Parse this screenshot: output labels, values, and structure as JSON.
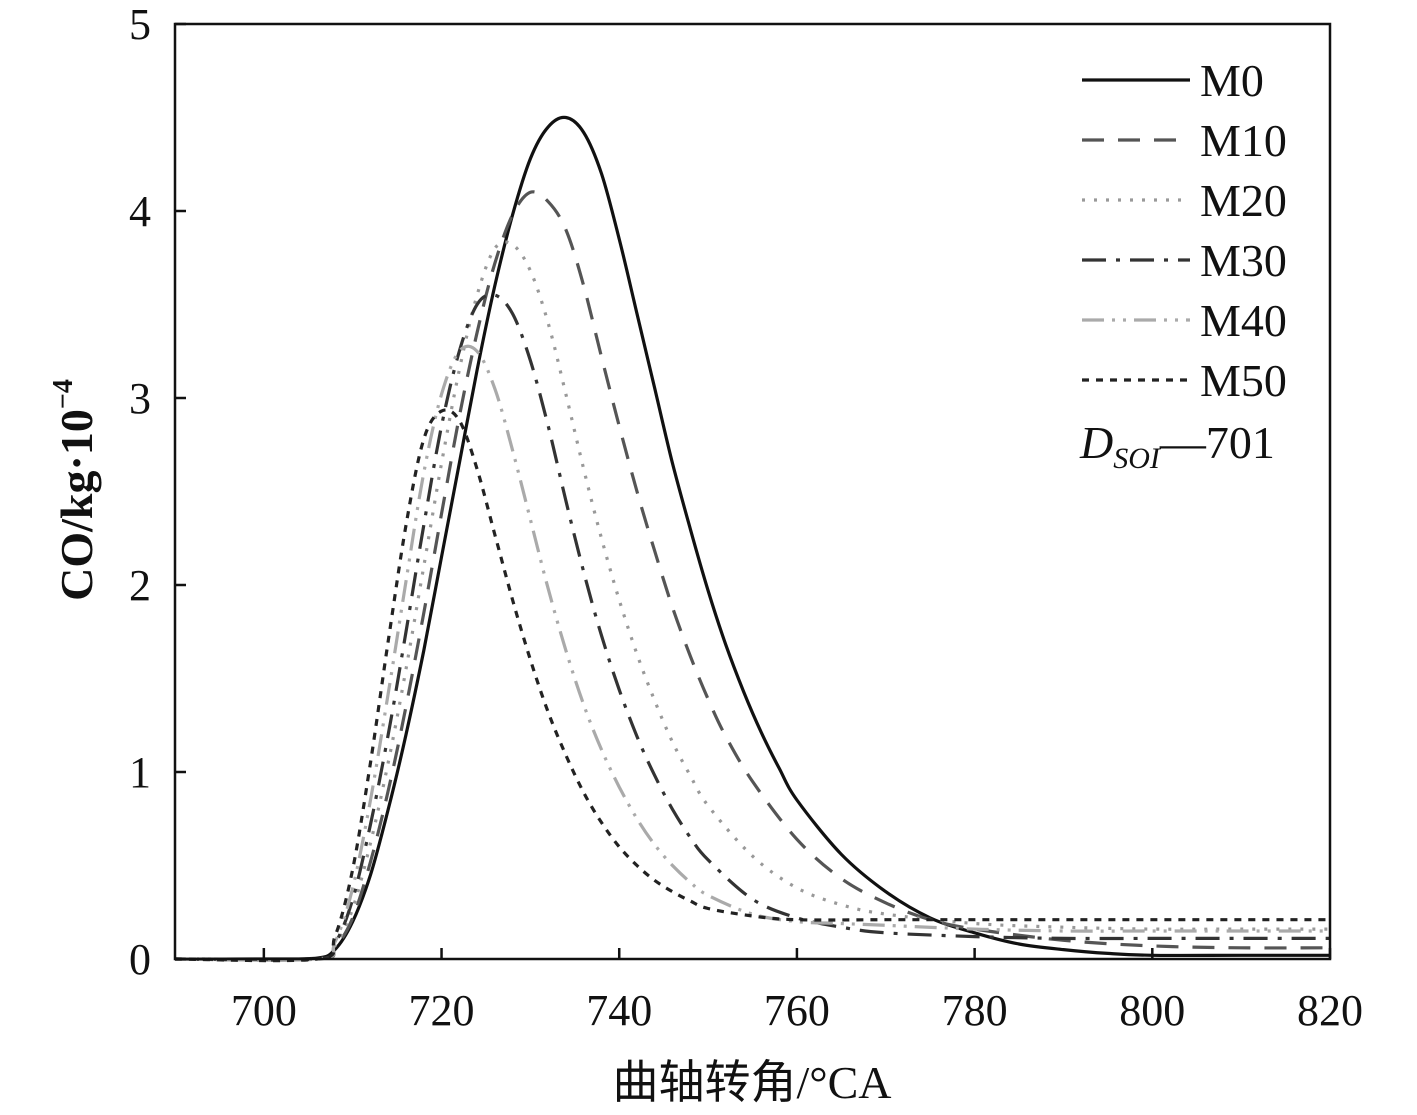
{
  "chart_data": {
    "type": "line",
    "xlabel": "曲轴转角/°CA",
    "ylabel_main": "CO/kg·10",
    "ylabel_exponent": "−4",
    "xlim": [
      690,
      820
    ],
    "ylim": [
      0,
      5
    ],
    "x_ticks": [
      700,
      720,
      740,
      760,
      780,
      800,
      820
    ],
    "x_tick_labels": [
      "700",
      "720",
      "740",
      "760",
      "780",
      "800",
      "820"
    ],
    "y_ticks": [
      0,
      1,
      2,
      3,
      4,
      5
    ],
    "y_tick_labels": [
      "0",
      "1",
      "2",
      "3",
      "4",
      "5"
    ],
    "grid": false,
    "legend_position": "top-right",
    "annotation": {
      "main": "D",
      "subscript": "SOI",
      "suffix": "—701"
    },
    "series": [
      {
        "name": "M0",
        "style": "solid",
        "color": "#111111",
        "points": [
          [
            690,
            0
          ],
          [
            700,
            0
          ],
          [
            706,
            0.005
          ],
          [
            708,
            0.05
          ],
          [
            710,
            0.2
          ],
          [
            712,
            0.45
          ],
          [
            714,
            0.8
          ],
          [
            716,
            1.2
          ],
          [
            718,
            1.65
          ],
          [
            720,
            2.15
          ],
          [
            722,
            2.65
          ],
          [
            724,
            3.15
          ],
          [
            726,
            3.6
          ],
          [
            728,
            3.98
          ],
          [
            730,
            4.28
          ],
          [
            732,
            4.45
          ],
          [
            734,
            4.5
          ],
          [
            736,
            4.42
          ],
          [
            738,
            4.2
          ],
          [
            740,
            3.85
          ],
          [
            742,
            3.45
          ],
          [
            744,
            3.05
          ],
          [
            746,
            2.65
          ],
          [
            748,
            2.3
          ],
          [
            750,
            1.97
          ],
          [
            752,
            1.68
          ],
          [
            754,
            1.43
          ],
          [
            756,
            1.21
          ],
          [
            758,
            1.02
          ],
          [
            760,
            0.85
          ],
          [
            765,
            0.56
          ],
          [
            770,
            0.36
          ],
          [
            775,
            0.22
          ],
          [
            780,
            0.14
          ],
          [
            785,
            0.08
          ],
          [
            790,
            0.05
          ],
          [
            795,
            0.03
          ],
          [
            800,
            0.02
          ],
          [
            810,
            0.02
          ],
          [
            820,
            0.02
          ]
        ]
      },
      {
        "name": "M10",
        "style": "dashed",
        "color": "#555555",
        "points": [
          [
            690,
            0
          ],
          [
            706,
            0
          ],
          [
            708,
            0.06
          ],
          [
            710,
            0.22
          ],
          [
            712,
            0.52
          ],
          [
            714,
            0.9
          ],
          [
            716,
            1.35
          ],
          [
            718,
            1.85
          ],
          [
            720,
            2.38
          ],
          [
            722,
            2.9
          ],
          [
            724,
            3.35
          ],
          [
            726,
            3.72
          ],
          [
            728,
            3.98
          ],
          [
            730,
            4.1
          ],
          [
            732,
            4.05
          ],
          [
            734,
            3.9
          ],
          [
            736,
            3.6
          ],
          [
            738,
            3.22
          ],
          [
            740,
            2.85
          ],
          [
            742,
            2.5
          ],
          [
            744,
            2.18
          ],
          [
            746,
            1.88
          ],
          [
            748,
            1.62
          ],
          [
            750,
            1.39
          ],
          [
            752,
            1.19
          ],
          [
            755,
            0.95
          ],
          [
            760,
            0.64
          ],
          [
            765,
            0.43
          ],
          [
            770,
            0.3
          ],
          [
            775,
            0.21
          ],
          [
            780,
            0.16
          ],
          [
            790,
            0.1
          ],
          [
            800,
            0.07
          ],
          [
            810,
            0.06
          ],
          [
            820,
            0.06
          ]
        ]
      },
      {
        "name": "M20",
        "style": "dotted",
        "color": "#999999",
        "points": [
          [
            690,
            0
          ],
          [
            706,
            0
          ],
          [
            708,
            0.07
          ],
          [
            710,
            0.27
          ],
          [
            712,
            0.62
          ],
          [
            714,
            1.05
          ],
          [
            716,
            1.55
          ],
          [
            718,
            2.1
          ],
          [
            720,
            2.65
          ],
          [
            722,
            3.15
          ],
          [
            724,
            3.55
          ],
          [
            726,
            3.8
          ],
          [
            728,
            3.82
          ],
          [
            730,
            3.68
          ],
          [
            732,
            3.4
          ],
          [
            734,
            3.02
          ],
          [
            736,
            2.62
          ],
          [
            738,
            2.25
          ],
          [
            740,
            1.92
          ],
          [
            742,
            1.63
          ],
          [
            744,
            1.38
          ],
          [
            746,
            1.16
          ],
          [
            748,
            0.98
          ],
          [
            750,
            0.82
          ],
          [
            755,
            0.55
          ],
          [
            760,
            0.38
          ],
          [
            765,
            0.29
          ],
          [
            770,
            0.24
          ],
          [
            780,
            0.19
          ],
          [
            790,
            0.17
          ],
          [
            800,
            0.16
          ],
          [
            810,
            0.16
          ],
          [
            820,
            0.16
          ]
        ]
      },
      {
        "name": "M30",
        "style": "dashdot",
        "color": "#333333",
        "points": [
          [
            690,
            0
          ],
          [
            706,
            0
          ],
          [
            708,
            0.08
          ],
          [
            710,
            0.32
          ],
          [
            712,
            0.72
          ],
          [
            714,
            1.2
          ],
          [
            716,
            1.75
          ],
          [
            718,
            2.32
          ],
          [
            720,
            2.85
          ],
          [
            722,
            3.25
          ],
          [
            724,
            3.5
          ],
          [
            726,
            3.55
          ],
          [
            728,
            3.45
          ],
          [
            730,
            3.2
          ],
          [
            732,
            2.85
          ],
          [
            734,
            2.45
          ],
          [
            736,
            2.07
          ],
          [
            738,
            1.73
          ],
          [
            740,
            1.44
          ],
          [
            742,
            1.19
          ],
          [
            744,
            0.98
          ],
          [
            746,
            0.8
          ],
          [
            748,
            0.65
          ],
          [
            750,
            0.53
          ],
          [
            755,
            0.32
          ],
          [
            760,
            0.22
          ],
          [
            765,
            0.17
          ],
          [
            770,
            0.14
          ],
          [
            780,
            0.12
          ],
          [
            790,
            0.11
          ],
          [
            800,
            0.11
          ],
          [
            810,
            0.11
          ],
          [
            820,
            0.11
          ]
        ]
      },
      {
        "name": "M40",
        "style": "dashdotdot",
        "color": "#aaaaaa",
        "points": [
          [
            690,
            0
          ],
          [
            706,
            0
          ],
          [
            708,
            0.09
          ],
          [
            710,
            0.38
          ],
          [
            712,
            0.85
          ],
          [
            714,
            1.42
          ],
          [
            716,
            2.02
          ],
          [
            718,
            2.6
          ],
          [
            720,
            3.02
          ],
          [
            722,
            3.25
          ],
          [
            724,
            3.25
          ],
          [
            726,
            3.05
          ],
          [
            728,
            2.72
          ],
          [
            730,
            2.35
          ],
          [
            732,
            1.98
          ],
          [
            734,
            1.65
          ],
          [
            736,
            1.36
          ],
          [
            738,
            1.12
          ],
          [
            740,
            0.92
          ],
          [
            742,
            0.75
          ],
          [
            744,
            0.61
          ],
          [
            746,
            0.5
          ],
          [
            748,
            0.41
          ],
          [
            750,
            0.34
          ],
          [
            755,
            0.24
          ],
          [
            760,
            0.2
          ],
          [
            765,
            0.19
          ],
          [
            770,
            0.18
          ],
          [
            780,
            0.16
          ],
          [
            790,
            0.15
          ],
          [
            800,
            0.15
          ],
          [
            810,
            0.15
          ],
          [
            820,
            0.15
          ]
        ]
      },
      {
        "name": "M50",
        "style": "shortdash",
        "color": "#222222",
        "points": [
          [
            690,
            0
          ],
          [
            706,
            0
          ],
          [
            708,
            0.12
          ],
          [
            710,
            0.48
          ],
          [
            712,
            1.05
          ],
          [
            714,
            1.7
          ],
          [
            716,
            2.32
          ],
          [
            718,
            2.78
          ],
          [
            720,
            2.93
          ],
          [
            722,
            2.88
          ],
          [
            724,
            2.62
          ],
          [
            726,
            2.27
          ],
          [
            728,
            1.92
          ],
          [
            730,
            1.6
          ],
          [
            732,
            1.32
          ],
          [
            734,
            1.09
          ],
          [
            736,
            0.89
          ],
          [
            738,
            0.73
          ],
          [
            740,
            0.6
          ],
          [
            742,
            0.5
          ],
          [
            744,
            0.42
          ],
          [
            746,
            0.36
          ],
          [
            748,
            0.31
          ],
          [
            750,
            0.27
          ],
          [
            755,
            0.23
          ],
          [
            760,
            0.21
          ],
          [
            770,
            0.21
          ],
          [
            780,
            0.21
          ],
          [
            790,
            0.21
          ],
          [
            800,
            0.21
          ],
          [
            810,
            0.21
          ],
          [
            820,
            0.21
          ]
        ]
      }
    ]
  }
}
